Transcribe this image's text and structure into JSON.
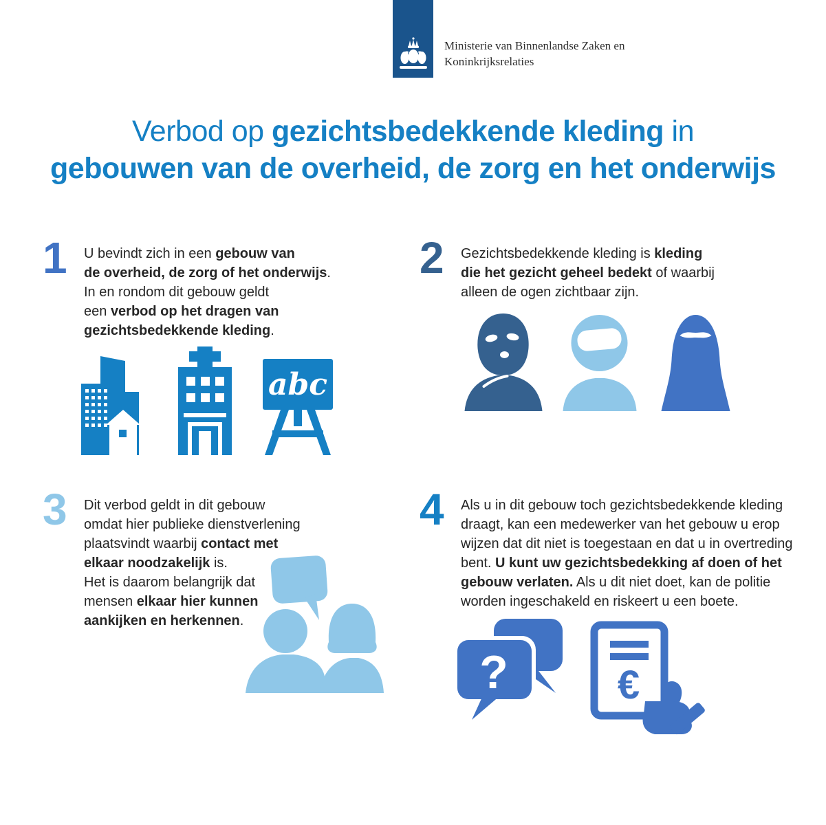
{
  "colors": {
    "logo-blue": "#1A548C",
    "bright-blue": "#1580C4",
    "medium-blue": "#4173C4",
    "steel-blue": "#35618F",
    "light-blue": "#8FC7E8",
    "text": "#262626"
  },
  "header": {
    "ministry_line1": "Ministerie van Binnenlandse Zaken en",
    "ministry_line2": "Koninkrijksrelaties"
  },
  "title": {
    "lines": [
      [
        {
          "t": "Verbod op ",
          "b": false
        },
        {
          "t": "gezichtsbedekkende kleding",
          "b": true
        },
        {
          "t": " in",
          "b": false
        }
      ],
      [
        {
          "t": "gebouwen van de overheid, de zorg en het onderwijs",
          "b": true
        }
      ]
    ]
  },
  "sections": [
    {
      "number": "1",
      "number_color": "#4173C4",
      "lines": [
        [
          {
            "t": "U bevindt zich in een ",
            "b": false
          },
          {
            "t": "gebouw van",
            "b": true
          }
        ],
        [
          {
            "t": "de overheid, de zorg of het onderwijs",
            "b": true
          },
          {
            "t": ".",
            "b": false
          }
        ],
        [
          {
            "t": "In en rondom dit gebouw geldt",
            "b": false
          }
        ],
        [
          {
            "t": "een ",
            "b": false
          },
          {
            "t": "verbod op het dragen van",
            "b": true
          }
        ],
        [
          {
            "t": "gezichtsbedekkende kleding",
            "b": true
          },
          {
            "t": ".",
            "b": false
          }
        ]
      ],
      "icons": {
        "school_board_label": "abc"
      }
    },
    {
      "number": "2",
      "number_color": "#35618F",
      "lines": [
        [
          {
            "t": "Gezichtsbedekkende kleding is ",
            "b": false
          },
          {
            "t": "kleding",
            "b": true
          }
        ],
        [
          {
            "t": "die het gezicht geheel bedekt",
            "b": true
          },
          {
            "t": " of waarbij",
            "b": false
          }
        ],
        [
          {
            "t": "alleen de ogen zichtbaar zijn.",
            "b": false
          }
        ]
      ]
    },
    {
      "number": "3",
      "number_color": "#8FC7E8",
      "lines": [
        [
          {
            "t": "Dit verbod geldt in dit gebouw",
            "b": false
          }
        ],
        [
          {
            "t": "omdat hier publieke dienstverlening",
            "b": false
          }
        ],
        [
          {
            "t": "plaatsvindt waarbij ",
            "b": false
          },
          {
            "t": "contact met",
            "b": true
          }
        ],
        [
          {
            "t": "elkaar noodzakelijk",
            "b": true
          },
          {
            "t": " is.",
            "b": false
          }
        ],
        [
          {
            "t": "Het is daarom belangrijk dat",
            "b": false
          }
        ],
        [
          {
            "t": "mensen ",
            "b": false
          },
          {
            "t": "elkaar hier kunnen",
            "b": true
          }
        ],
        [
          {
            "t": "aankijken en herkennen",
            "b": true
          },
          {
            "t": ".",
            "b": false
          }
        ]
      ]
    },
    {
      "number": "4",
      "number_color": "#1580C4",
      "lines": [
        [
          {
            "t": "Als u in dit gebouw toch gezichtsbedekkende kleding",
            "b": false
          }
        ],
        [
          {
            "t": "draagt, kan een medewerker van het gebouw u erop",
            "b": false
          }
        ],
        [
          {
            "t": "wijzen dat dit niet is toegestaan en dat u in overtreding",
            "b": false
          }
        ],
        [
          {
            "t": "bent. ",
            "b": false
          },
          {
            "t": "U kunt uw gezichtsbedekking af doen of het",
            "b": true
          }
        ],
        [
          {
            "t": "gebouw verlaten.",
            "b": true
          },
          {
            "t": " Als u dit niet doet, kan de politie",
            "b": false
          }
        ],
        [
          {
            "t": "worden ingeschakeld en riskeert u een boete.",
            "b": false
          }
        ]
      ],
      "icons": {
        "question_mark": "?",
        "euro_sign": "€"
      }
    }
  ]
}
